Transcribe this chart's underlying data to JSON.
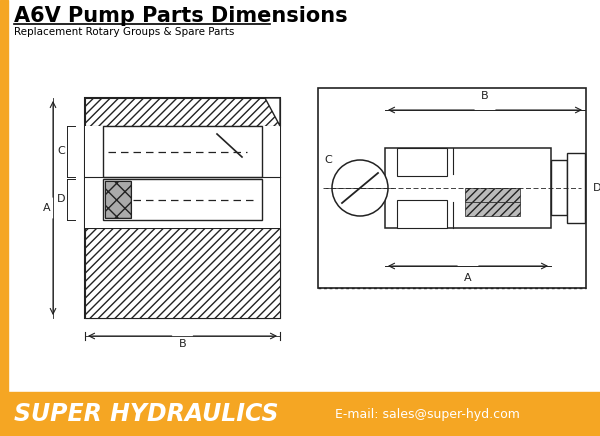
{
  "title": "A6V Pump Parts Dimensions",
  "subtitle": "Replacement Rotary Groups & Spare Parts",
  "footer_bg": "#F5A623",
  "footer_text": "SUPER HYDRAULICS",
  "footer_email": "E-mail: sales@super-hyd.com",
  "bg_color": "#FFFFFF",
  "fig_width": 6.0,
  "fig_height": 4.36,
  "left_orange_bar_color": "#F5A623",
  "line_color": "#222222"
}
